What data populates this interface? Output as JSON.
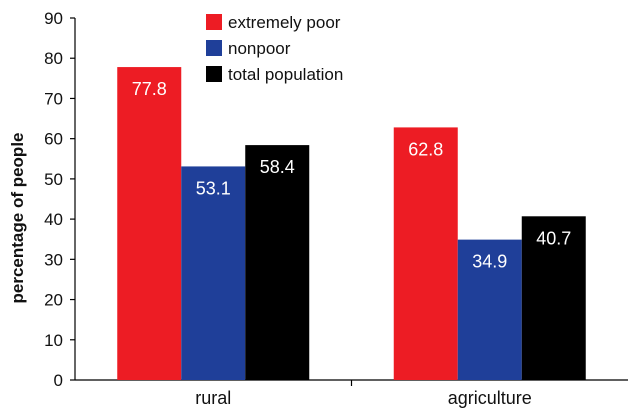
{
  "chart_data": {
    "type": "bar",
    "title": "",
    "xlabel": "",
    "ylabel": "percentage of people",
    "categories": [
      "rural",
      "agriculture"
    ],
    "ylim": [
      0,
      90
    ],
    "yticks": [
      0,
      10,
      20,
      30,
      40,
      50,
      60,
      70,
      80,
      90
    ],
    "grid": false,
    "legend_position": "top-center",
    "series": [
      {
        "name": "extremely poor",
        "color": "#ed1c24",
        "values": [
          77.8,
          62.8
        ],
        "labels": [
          "77.8",
          "62.8"
        ]
      },
      {
        "name": "nonpoor",
        "color": "#1f3f99",
        "values": [
          53.1,
          34.9
        ],
        "labels": [
          "53.1",
          "34.9"
        ]
      },
      {
        "name": "total population",
        "color": "#000000",
        "values": [
          58.4,
          40.7
        ],
        "labels": [
          "58.4",
          "40.7"
        ]
      }
    ]
  }
}
